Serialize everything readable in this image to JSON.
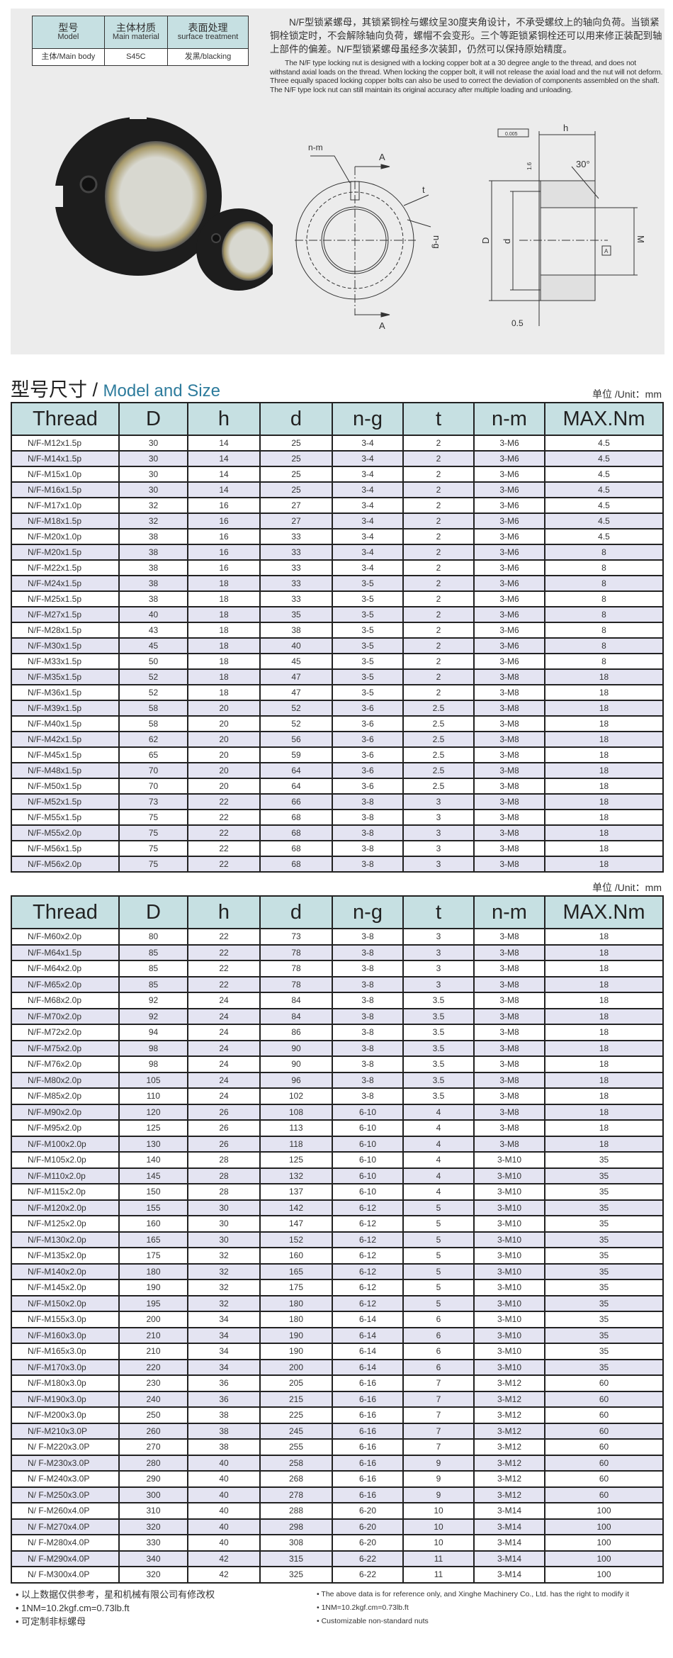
{
  "spec_table": {
    "headers": [
      {
        "cn": "型号",
        "en": "Model"
      },
      {
        "cn": "主体材质",
        "en": "Main material"
      },
      {
        "cn": "表面处理",
        "en": "surface treatment"
      }
    ],
    "row": [
      "主体/Main body",
      "S45C",
      "发黑/blacking"
    ]
  },
  "description": {
    "cn": "N/F型锁紧螺母，其锁紧铜栓与螺纹呈30度夹角设计，不承受螺纹上的轴向负荷。当锁紧铜栓锁定时，不会解除轴向负荷，螺帽不会变形。三个等距锁紧铜栓还可以用来修正装配到轴上部件的偏差。N/F型锁紧螺母虽经多次装卸，仍然可以保持原始精度。",
    "en": "The N/F type locking nut is designed with a locking copper bolt at a 30 degree angle to the thread, and does not withstand axial loads on the thread. When locking the copper bolt, it will not release the axial load and the nut will not deform. Three equally spaced locking copper bolts can also be used to correct the deviation of components assembled on the shaft. The N/F type lock nut can still maintain its original accuracy after multiple loading and unloading."
  },
  "drawing_labels": {
    "nm": "n-m",
    "a": "A",
    "t": "t",
    "ng": "n-g",
    "D": "D",
    "d": "d",
    "h": "h",
    "angle": "30°",
    "M": "M",
    "gap": "0.5",
    "rough": "1.6",
    "tol": "0.005",
    "datum": "A"
  },
  "section": {
    "title_cn": "型号尺寸 / ",
    "title_en": "Model and Size",
    "unit": "单位 /Unit：mm"
  },
  "columns": [
    "Thread",
    "D",
    "h",
    "d",
    "n-g",
    "t",
    "n-m",
    "MAX.Nm"
  ],
  "colors": {
    "header_bg": "#c6e0e2",
    "alt_row": "#e4e4f2",
    "title_accent": "#2d7b9c"
  },
  "table1": [
    [
      "N/F-M12x1.5p",
      "30",
      "14",
      "25",
      "3-4",
      "2",
      "3-M6",
      "4.5"
    ],
    [
      "N/F-M14x1.5p",
      "30",
      "14",
      "25",
      "3-4",
      "2",
      "3-M6",
      "4.5"
    ],
    [
      "N/F-M15x1.0p",
      "30",
      "14",
      "25",
      "3-4",
      "2",
      "3-M6",
      "4.5"
    ],
    [
      "N/F-M16x1.5p",
      "30",
      "14",
      "25",
      "3-4",
      "2",
      "3-M6",
      "4.5"
    ],
    [
      "N/F-M17x1.0p",
      "32",
      "16",
      "27",
      "3-4",
      "2",
      "3-M6",
      "4.5"
    ],
    [
      "N/F-M18x1.5p",
      "32",
      "16",
      "27",
      "3-4",
      "2",
      "3-M6",
      "4.5"
    ],
    [
      "N/F-M20x1.0p",
      "38",
      "16",
      "33",
      "3-4",
      "2",
      "3-M6",
      "4.5"
    ],
    [
      "N/F-M20x1.5p",
      "38",
      "16",
      "33",
      "3-4",
      "2",
      "3-M6",
      "8"
    ],
    [
      "N/F-M22x1.5p",
      "38",
      "16",
      "33",
      "3-4",
      "2",
      "3-M6",
      "8"
    ],
    [
      "N/F-M24x1.5p",
      "38",
      "18",
      "33",
      "3-5",
      "2",
      "3-M6",
      "8"
    ],
    [
      "N/F-M25x1.5p",
      "38",
      "18",
      "33",
      "3-5",
      "2",
      "3-M6",
      "8"
    ],
    [
      "N/F-M27x1.5p",
      "40",
      "18",
      "35",
      "3-5",
      "2",
      "3-M6",
      "8"
    ],
    [
      "N/F-M28x1.5p",
      "43",
      "18",
      "38",
      "3-5",
      "2",
      "3-M6",
      "8"
    ],
    [
      "N/F-M30x1.5p",
      "45",
      "18",
      "40",
      "3-5",
      "2",
      "3-M6",
      "8"
    ],
    [
      "N/F-M33x1.5p",
      "50",
      "18",
      "45",
      "3-5",
      "2",
      "3-M6",
      "8"
    ],
    [
      "N/F-M35x1.5p",
      "52",
      "18",
      "47",
      "3-5",
      "2",
      "3-M8",
      "18"
    ],
    [
      "N/F-M36x1.5p",
      "52",
      "18",
      "47",
      "3-5",
      "2",
      "3-M8",
      "18"
    ],
    [
      "N/F-M39x1.5p",
      "58",
      "20",
      "52",
      "3-6",
      "2.5",
      "3-M8",
      "18"
    ],
    [
      "N/F-M40x1.5p",
      "58",
      "20",
      "52",
      "3-6",
      "2.5",
      "3-M8",
      "18"
    ],
    [
      "N/F-M42x1.5p",
      "62",
      "20",
      "56",
      "3-6",
      "2.5",
      "3-M8",
      "18"
    ],
    [
      "N/F-M45x1.5p",
      "65",
      "20",
      "59",
      "3-6",
      "2.5",
      "3-M8",
      "18"
    ],
    [
      "N/F-M48x1.5p",
      "70",
      "20",
      "64",
      "3-6",
      "2.5",
      "3-M8",
      "18"
    ],
    [
      "N/F-M50x1.5p",
      "70",
      "20",
      "64",
      "3-6",
      "2.5",
      "3-M8",
      "18"
    ],
    [
      "N/F-M52x1.5p",
      "73",
      "22",
      "66",
      "3-8",
      "3",
      "3-M8",
      "18"
    ],
    [
      "N/F-M55x1.5p",
      "75",
      "22",
      "68",
      "3-8",
      "3",
      "3-M8",
      "18"
    ],
    [
      "N/F-M55x2.0p",
      "75",
      "22",
      "68",
      "3-8",
      "3",
      "3-M8",
      "18"
    ],
    [
      "N/F-M56x1.5p",
      "75",
      "22",
      "68",
      "3-8",
      "3",
      "3-M8",
      "18"
    ],
    [
      "N/F-M56x2.0p",
      "75",
      "22",
      "68",
      "3-8",
      "3",
      "3-M8",
      "18"
    ]
  ],
  "table2": [
    [
      "N/F-M60x2.0p",
      "80",
      "22",
      "73",
      "3-8",
      "3",
      "3-M8",
      "18"
    ],
    [
      "N/F-M64x1.5p",
      "85",
      "22",
      "78",
      "3-8",
      "3",
      "3-M8",
      "18"
    ],
    [
      "N/F-M64x2.0p",
      "85",
      "22",
      "78",
      "3-8",
      "3",
      "3-M8",
      "18"
    ],
    [
      "N/F-M65x2.0p",
      "85",
      "22",
      "78",
      "3-8",
      "3",
      "3-M8",
      "18"
    ],
    [
      "N/F-M68x2.0p",
      "92",
      "24",
      "84",
      "3-8",
      "3.5",
      "3-M8",
      "18"
    ],
    [
      "N/F-M70x2.0p",
      "92",
      "24",
      "84",
      "3-8",
      "3.5",
      "3-M8",
      "18"
    ],
    [
      "N/F-M72x2.0p",
      "94",
      "24",
      "86",
      "3-8",
      "3.5",
      "3-M8",
      "18"
    ],
    [
      "N/F-M75x2.0p",
      "98",
      "24",
      "90",
      "3-8",
      "3.5",
      "3-M8",
      "18"
    ],
    [
      "N/F-M76x2.0p",
      "98",
      "24",
      "90",
      "3-8",
      "3.5",
      "3-M8",
      "18"
    ],
    [
      "N/F-M80x2.0p",
      "105",
      "24",
      "96",
      "3-8",
      "3.5",
      "3-M8",
      "18"
    ],
    [
      "N/F-M85x2.0p",
      "110",
      "24",
      "102",
      "3-8",
      "3.5",
      "3-M8",
      "18"
    ],
    [
      "N/F-M90x2.0p",
      "120",
      "26",
      "108",
      "6-10",
      "4",
      "3-M8",
      "18"
    ],
    [
      "N/F-M95x2.0p",
      "125",
      "26",
      "113",
      "6-10",
      "4",
      "3-M8",
      "18"
    ],
    [
      "N/F-M100x2.0p",
      "130",
      "26",
      "118",
      "6-10",
      "4",
      "3-M8",
      "18"
    ],
    [
      "N/F-M105x2.0p",
      "140",
      "28",
      "125",
      "6-10",
      "4",
      "3-M10",
      "35"
    ],
    [
      "N/F-M110x2.0p",
      "145",
      "28",
      "132",
      "6-10",
      "4",
      "3-M10",
      "35"
    ],
    [
      "N/F-M115x2.0p",
      "150",
      "28",
      "137",
      "6-10",
      "4",
      "3-M10",
      "35"
    ],
    [
      "N/F-M120x2.0p",
      "155",
      "30",
      "142",
      "6-12",
      "5",
      "3-M10",
      "35"
    ],
    [
      "N/F-M125x2.0p",
      "160",
      "30",
      "147",
      "6-12",
      "5",
      "3-M10",
      "35"
    ],
    [
      "N/F-M130x2.0p",
      "165",
      "30",
      "152",
      "6-12",
      "5",
      "3-M10",
      "35"
    ],
    [
      "N/F-M135x2.0p",
      "175",
      "32",
      "160",
      "6-12",
      "5",
      "3-M10",
      "35"
    ],
    [
      "N/F-M140x2.0p",
      "180",
      "32",
      "165",
      "6-12",
      "5",
      "3-M10",
      "35"
    ],
    [
      "N/F-M145x2.0p",
      "190",
      "32",
      "175",
      "6-12",
      "5",
      "3-M10",
      "35"
    ],
    [
      "N/F-M150x2.0p",
      "195",
      "32",
      "180",
      "6-12",
      "5",
      "3-M10",
      "35"
    ],
    [
      "N/F-M155x3.0p",
      "200",
      "34",
      "180",
      "6-14",
      "6",
      "3-M10",
      "35"
    ],
    [
      "N/F-M160x3.0p",
      "210",
      "34",
      "190",
      "6-14",
      "6",
      "3-M10",
      "35"
    ],
    [
      "N/F-M165x3.0p",
      "210",
      "34",
      "190",
      "6-14",
      "6",
      "3-M10",
      "35"
    ],
    [
      "N/F-M170x3.0p",
      "220",
      "34",
      "200",
      "6-14",
      "6",
      "3-M10",
      "35"
    ],
    [
      "N/F-M180x3.0p",
      "230",
      "36",
      "205",
      "6-16",
      "7",
      "3-M12",
      "60"
    ],
    [
      "N/F-M190x3.0p",
      "240",
      "36",
      "215",
      "6-16",
      "7",
      "3-M12",
      "60"
    ],
    [
      "N/F-M200x3.0p",
      "250",
      "38",
      "225",
      "6-16",
      "7",
      "3-M12",
      "60"
    ],
    [
      "N/F-M210x3.0P",
      "260",
      "38",
      "245",
      "6-16",
      "7",
      "3-M12",
      "60"
    ],
    [
      "N/ F-M220x3.0P",
      "270",
      "38",
      "255",
      "6-16",
      "7",
      "3-M12",
      "60"
    ],
    [
      "N/ F-M230x3.0P",
      "280",
      "40",
      "258",
      "6-16",
      "9",
      "3-M12",
      "60"
    ],
    [
      "N/ F-M240x3.0P",
      "290",
      "40",
      "268",
      "6-16",
      "9",
      "3-M12",
      "60"
    ],
    [
      "N/ F-M250x3.0P",
      "300",
      "40",
      "278",
      "6-16",
      "9",
      "3-M12",
      "60"
    ],
    [
      "N/ F-M260x4.0P",
      "310",
      "40",
      "288",
      "6-20",
      "10",
      "3-M14",
      "100"
    ],
    [
      "N/ F-M270x4.0P",
      "320",
      "40",
      "298",
      "6-20",
      "10",
      "3-M14",
      "100"
    ],
    [
      "N/ F-M280x4.0P",
      "330",
      "40",
      "308",
      "6-20",
      "10",
      "3-M14",
      "100"
    ],
    [
      "N/ F-M290x4.0P",
      "340",
      "42",
      "315",
      "6-22",
      "11",
      "3-M14",
      "100"
    ],
    [
      "N/ F-M300x4.0P",
      "320",
      "42",
      "325",
      "6-22",
      "11",
      "3-M14",
      "100"
    ]
  ],
  "notes_cn": [
    "以上数据仅供参考，星和机械有限公司有修改权",
    "1NM=10.2kgf.cm=0.73lb.ft",
    "可定制非标螺母"
  ],
  "notes_en": [
    "The above data is for reference only, and Xinghe Machinery Co., Ltd. has the right to modify it",
    "1NM=10.2kgf.cm=0.73lb.ft",
    "Customizable non-standard nuts"
  ]
}
